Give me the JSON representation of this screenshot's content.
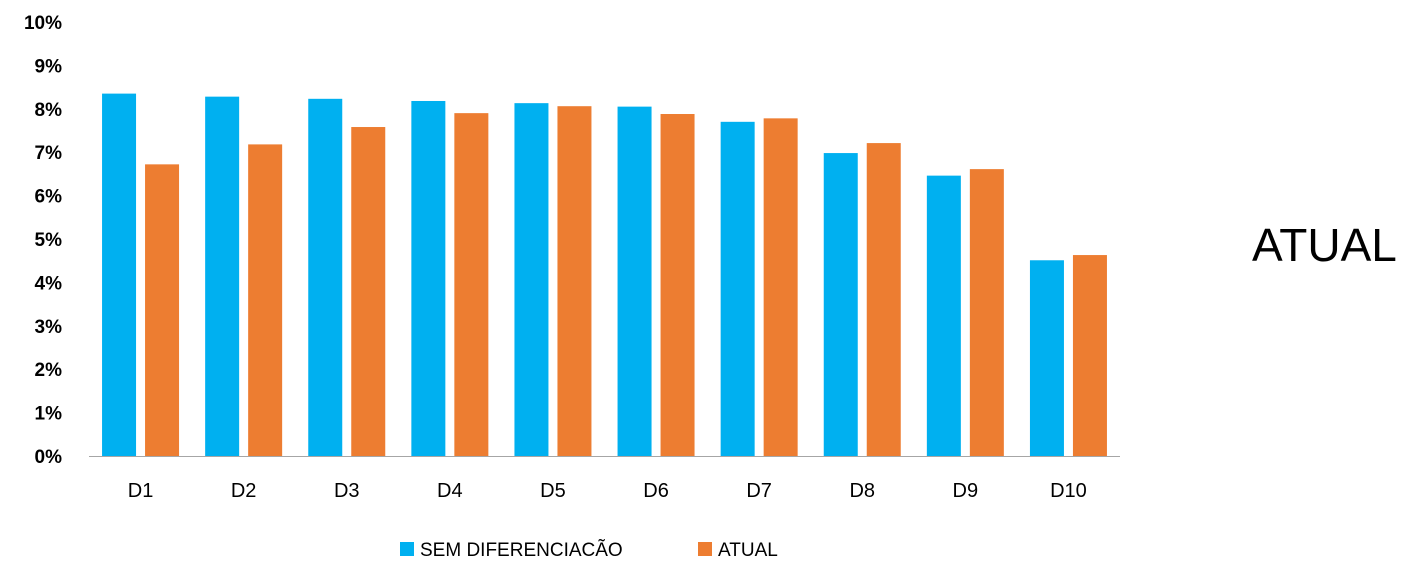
{
  "side_title": "ATUAL",
  "chart_data": {
    "type": "bar",
    "categories": [
      "D1",
      "D2",
      "D3",
      "D4",
      "D5",
      "D6",
      "D7",
      "D8",
      "D9",
      "D10"
    ],
    "series": [
      {
        "name": "SEM DIFERENCIACÃO",
        "color": "#00B0F0",
        "values": [
          8.35,
          8.28,
          8.23,
          8.18,
          8.13,
          8.05,
          7.7,
          6.98,
          6.46,
          4.51
        ]
      },
      {
        "name": "ATUAL",
        "color": "#ED7D31",
        "values": [
          6.72,
          7.18,
          7.58,
          7.9,
          8.06,
          7.88,
          7.78,
          7.21,
          6.61,
          4.63
        ]
      }
    ],
    "y_ticks": [
      "0%",
      "1%",
      "2%",
      "3%",
      "4%",
      "5%",
      "6%",
      "7%",
      "8%",
      "9%",
      "10%"
    ],
    "ylim": [
      0,
      10
    ],
    "y_unit": "%",
    "grid": false,
    "legend_position": "bottom"
  }
}
